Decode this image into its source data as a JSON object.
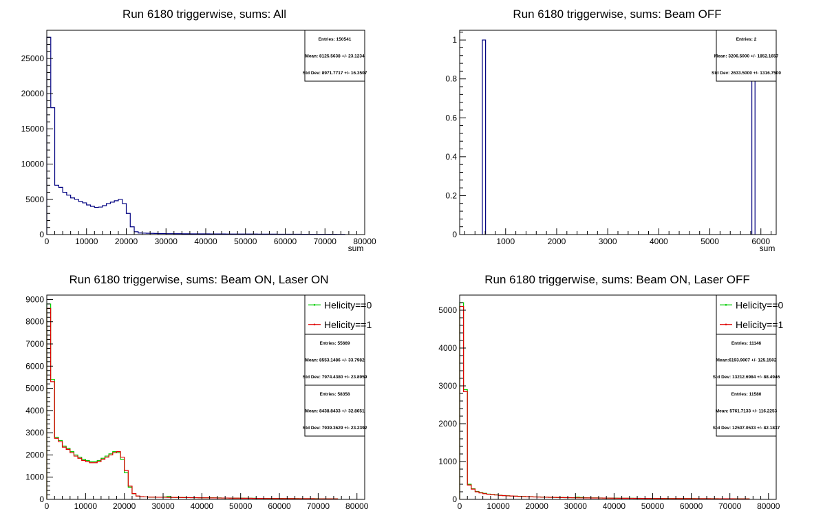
{
  "colors": {
    "all": "#000080",
    "helicity0": "#00cc00",
    "helicity1": "#e00000",
    "statsBlue": "#0000cc",
    "statsGreen": "#00cc00",
    "statsRed": "#e00000"
  },
  "chart_data": [
    {
      "type": "histogram",
      "title": "Run 6180 triggerwise, sums: All",
      "xlabel": "sum",
      "ylabel": "",
      "xlim": [
        0,
        80000
      ],
      "ylim": [
        0,
        29000
      ],
      "xticks": [
        0,
        10000,
        20000,
        30000,
        40000,
        50000,
        60000,
        70000,
        80000
      ],
      "xtick_labels": [
        "0",
        "10000",
        "20000",
        "30000",
        "40000",
        "50000",
        "60000",
        "70000",
        "80000"
      ],
      "yticks": [
        0,
        5000,
        10000,
        15000,
        20000,
        25000
      ],
      "ytick_labels": [
        "0",
        "5000",
        "10000",
        "15000",
        "20000",
        "25000"
      ],
      "bin_width": 1000,
      "x_start": 0,
      "series": [
        {
          "color_key": "all",
          "values": [
            28000,
            18000,
            7000,
            6700,
            6000,
            5600,
            5200,
            5000,
            4700,
            4500,
            4200,
            4000,
            3850,
            3900,
            4100,
            4400,
            4600,
            4800,
            5000,
            4400,
            3000,
            1100,
            400,
            220,
            200,
            180,
            170,
            160,
            150,
            140,
            130,
            130,
            120,
            120,
            110,
            110,
            100,
            100,
            100,
            95,
            95,
            90,
            90,
            85,
            85,
            80,
            80,
            80,
            75,
            75,
            70,
            70,
            70,
            65,
            65,
            60,
            60,
            60,
            55,
            55,
            55,
            50,
            50,
            50,
            45,
            45,
            45,
            40,
            40,
            40,
            35,
            35,
            35,
            30,
            30
          ]
        }
      ],
      "stats": [
        {
          "color_key": "statsBlue",
          "lines": [
            "Entries: 150541",
            "Mean: 8125.5638 +/- 23.1234",
            "Std Dev: 8971.7717 +/- 16.3507"
          ]
        }
      ],
      "legend": []
    },
    {
      "type": "histogram",
      "title": "Run 6180 triggerwise, sums: Beam OFF",
      "xlabel": "sum",
      "ylabel": "",
      "xlim": [
        100,
        6300
      ],
      "ylim": [
        0,
        1.05
      ],
      "xticks": [
        1000,
        2000,
        3000,
        4000,
        5000,
        6000
      ],
      "xtick_labels": [
        "1000",
        "2000",
        "3000",
        "4000",
        "5000",
        "6000"
      ],
      "yticks": [
        0,
        0.2,
        0.4,
        0.6,
        0.8,
        1
      ],
      "ytick_labels": [
        "0",
        "0.2",
        "0.4",
        "0.6",
        "0.8",
        "1"
      ],
      "bins": [
        {
          "x0": 545,
          "x1": 607,
          "value": 1
        },
        {
          "x0": 5823,
          "x1": 5885,
          "value": 1
        }
      ],
      "series": [
        {
          "color_key": "all"
        }
      ],
      "stats": [
        {
          "color_key": "statsBlue",
          "lines": [
            "Entries: 2",
            "Mean: 3206.5000 +/- 1852.1657",
            "Std Dev: 2633.5000 +/- 1316.7500"
          ]
        }
      ],
      "legend": []
    },
    {
      "type": "histogram",
      "title": "Run 6180 triggerwise, sums: Beam ON, Laser ON",
      "xlabel": "",
      "ylabel": "",
      "xlim": [
        0,
        82000
      ],
      "ylim": [
        0,
        9200
      ],
      "xticks": [
        0,
        10000,
        20000,
        30000,
        40000,
        50000,
        60000,
        70000,
        80000
      ],
      "xtick_labels": [
        "0",
        "10000",
        "20000",
        "30000",
        "40000",
        "50000",
        "60000",
        "70000",
        "80000"
      ],
      "yticks": [
        0,
        1000,
        2000,
        3000,
        4000,
        5000,
        6000,
        7000,
        8000,
        9000
      ],
      "ytick_labels": [
        "0",
        "1000",
        "2000",
        "3000",
        "4000",
        "5000",
        "6000",
        "7000",
        "8000",
        "9000"
      ],
      "bin_width": 1000,
      "x_start": 0,
      "series": [
        {
          "name": "Helicity==0",
          "color_key": "helicity0",
          "values": [
            8800,
            5400,
            2800,
            2650,
            2400,
            2300,
            2150,
            2000,
            1900,
            1800,
            1750,
            1700,
            1700,
            1750,
            1850,
            1950,
            2050,
            2150,
            2100,
            1800,
            1200,
            550,
            250,
            150,
            120,
            110,
            100,
            100,
            95,
            95,
            110,
            130,
            90,
            90,
            85,
            85,
            80,
            80,
            75,
            75,
            70,
            70,
            70,
            65,
            65,
            60,
            60,
            60,
            55,
            55,
            55,
            50,
            50,
            50,
            45,
            45,
            45,
            40,
            40,
            40,
            40,
            35,
            35,
            35,
            35,
            30,
            30,
            30,
            30,
            30,
            25,
            25,
            25,
            25,
            25
          ]
        },
        {
          "name": "Helicity==1",
          "color_key": "helicity1",
          "values": [
            8600,
            5300,
            2750,
            2600,
            2350,
            2250,
            2100,
            1950,
            1850,
            1750,
            1700,
            1650,
            1650,
            1700,
            1800,
            1900,
            2000,
            2100,
            2150,
            1900,
            1300,
            600,
            260,
            150,
            120,
            110,
            100,
            100,
            95,
            95,
            95,
            90,
            90,
            85,
            85,
            80,
            80,
            75,
            75,
            70,
            70,
            70,
            65,
            65,
            60,
            60,
            60,
            55,
            55,
            55,
            50,
            50,
            50,
            45,
            45,
            45,
            40,
            40,
            40,
            40,
            35,
            35,
            35,
            35,
            30,
            30,
            30,
            30,
            30,
            25,
            25,
            25,
            25,
            25,
            25
          ]
        }
      ],
      "stats": [
        {
          "color_key": "statsGreen",
          "lines": [
            "Entries: 55669",
            "Mean: 8553.1486 +/- 33.7982",
            "Std Dev: 7974.4380 +/- 23.8959"
          ]
        },
        {
          "color_key": "statsRed",
          "lines": [
            "Entries: 58358",
            "Mean: 8438.8433 +/- 32.8651",
            "Std Dev: 7939.3629 +/- 23.2392"
          ]
        }
      ],
      "legend": [
        {
          "label": "Helicity==0",
          "color_key": "helicity0"
        },
        {
          "label": "Helicity==1",
          "color_key": "helicity1"
        }
      ]
    },
    {
      "type": "histogram",
      "title": "Run 6180 triggerwise, sums: Beam ON, Laser OFF",
      "xlabel": "",
      "ylabel": "",
      "xlim": [
        0,
        82000
      ],
      "ylim": [
        0,
        5400
      ],
      "xticks": [
        0,
        10000,
        20000,
        30000,
        40000,
        50000,
        60000,
        70000,
        80000
      ],
      "xtick_labels": [
        "0",
        "10000",
        "20000",
        "30000",
        "40000",
        "50000",
        "60000",
        "70000",
        "80000"
      ],
      "yticks": [
        0,
        1000,
        2000,
        3000,
        4000,
        5000
      ],
      "ytick_labels": [
        "0",
        "1000",
        "2000",
        "3000",
        "4000",
        "5000"
      ],
      "bin_width": 1000,
      "x_start": 0,
      "series": [
        {
          "name": "Helicity==0",
          "color_key": "helicity0",
          "values": [
            5200,
            2900,
            400,
            280,
            210,
            180,
            160,
            140,
            130,
            120,
            110,
            100,
            95,
            90,
            85,
            80,
            75,
            70,
            70,
            65,
            65,
            60,
            60,
            55,
            55,
            50,
            50,
            48,
            46,
            44,
            60,
            50,
            42,
            40,
            40,
            38,
            36,
            35,
            34,
            33,
            32,
            31,
            30,
            30,
            29,
            28,
            27,
            26,
            25,
            25,
            24,
            24,
            23,
            23,
            22,
            22,
            21,
            21,
            20,
            20,
            20,
            19,
            19,
            19,
            18,
            18,
            18,
            17,
            17,
            17,
            16,
            16,
            16,
            15,
            15
          ]
        },
        {
          "name": "Helicity==1",
          "color_key": "helicity1",
          "values": [
            5100,
            2850,
            380,
            270,
            200,
            170,
            150,
            135,
            125,
            115,
            105,
            98,
            92,
            88,
            84,
            78,
            73,
            70,
            68,
            64,
            62,
            58,
            57,
            54,
            52,
            50,
            48,
            46,
            44,
            42,
            41,
            40,
            39,
            38,
            37,
            36,
            35,
            34,
            33,
            32,
            31,
            30,
            29,
            29,
            28,
            27,
            26,
            26,
            25,
            24,
            24,
            23,
            23,
            22,
            22,
            21,
            21,
            20,
            20,
            20,
            19,
            19,
            18,
            18,
            18,
            17,
            17,
            17,
            16,
            16,
            16,
            15,
            15,
            15,
            15
          ]
        }
      ],
      "stats": [
        {
          "color_key": "statsGreen",
          "lines": [
            "Entries: 11146",
            "Mean:6193.9007 +/- 125.1502",
            "Std Dev: 13212.6984 +/- 88.4946"
          ]
        },
        {
          "color_key": "statsRed",
          "lines": [
            "Entries: 11580",
            "Mean: 5761.7133 +/- 116.2253",
            "Std Dev: 12507.0533 +/- 82.1837"
          ]
        }
      ],
      "legend": [
        {
          "label": "Helicity==0",
          "color_key": "helicity0"
        },
        {
          "label": "Helicity==1",
          "color_key": "helicity1"
        }
      ]
    }
  ]
}
